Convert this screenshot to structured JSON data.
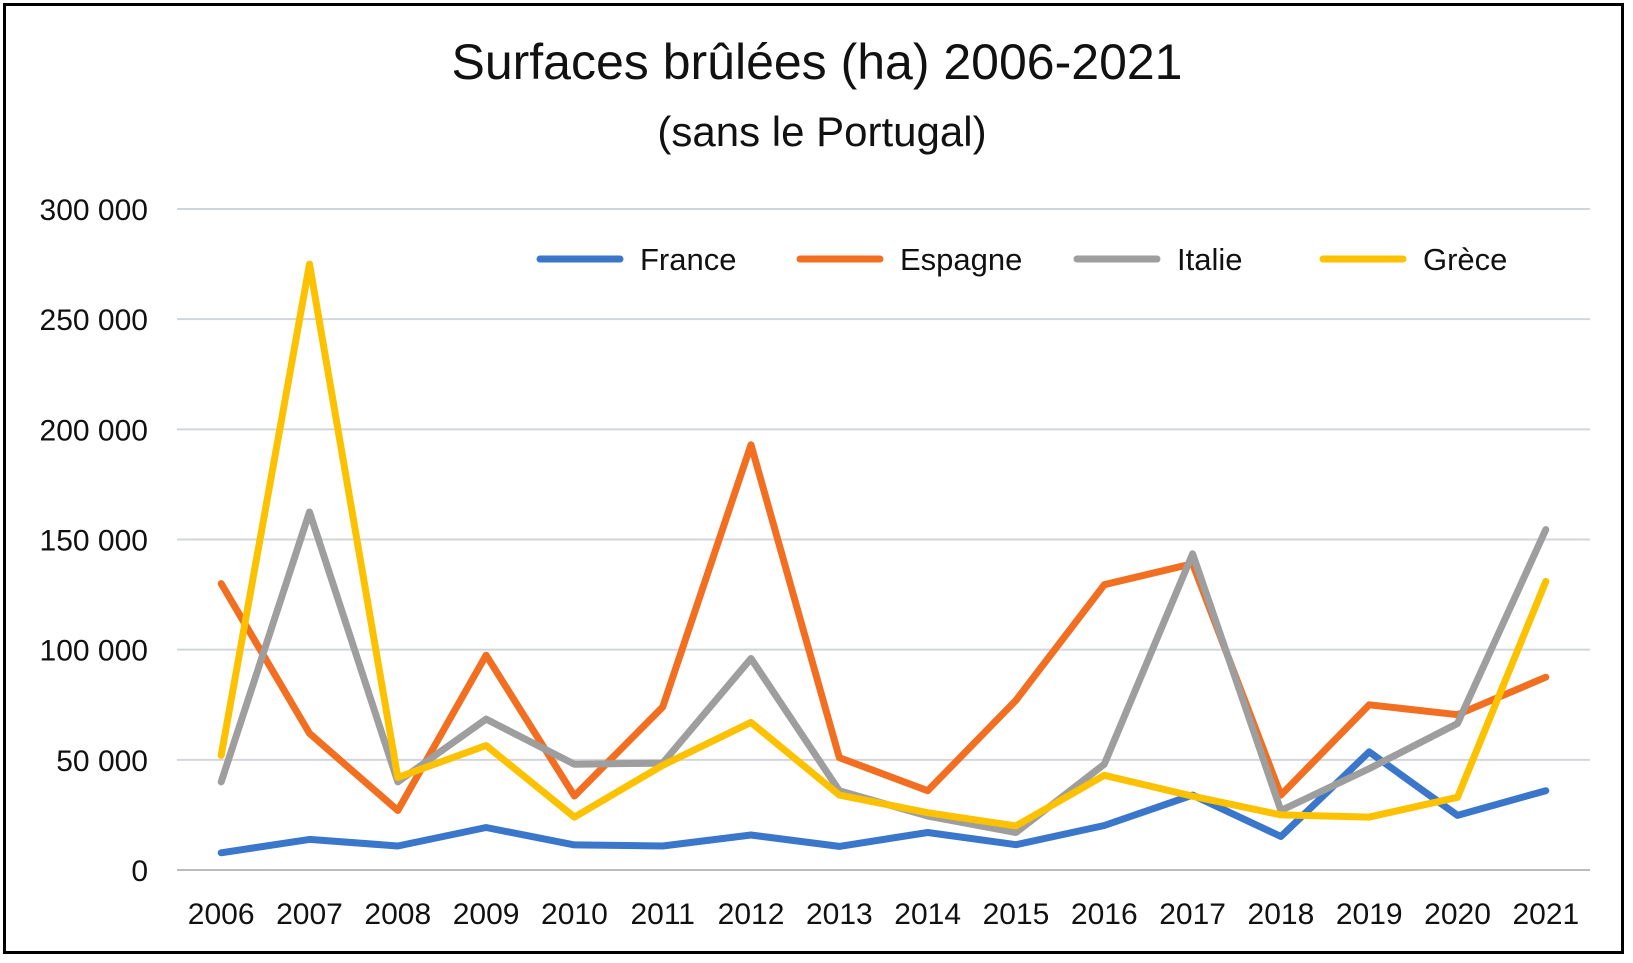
{
  "chart_data": {
    "type": "line",
    "title": "Surfaces brûlées (ha) 2006-2021",
    "subtitle": "(sans le Portugal)",
    "xlabel": "",
    "ylabel": "",
    "categories": [
      "2006",
      "2007",
      "2008",
      "2009",
      "2010",
      "2011",
      "2012",
      "2013",
      "2014",
      "2015",
      "2016",
      "2017",
      "2018",
      "2019",
      "2020",
      "2021"
    ],
    "yticks": [
      0,
      50000,
      100000,
      150000,
      200000,
      250000,
      300000
    ],
    "ytick_labels": [
      "0",
      "50 000",
      "100 000",
      "150 000",
      "200 000",
      "250 000",
      "300 000"
    ],
    "ylim": [
      0,
      300000
    ],
    "grid": true,
    "legend_position": "top-right",
    "series": [
      {
        "name": "France",
        "color": "#3a76c9",
        "values": [
          7800,
          13900,
          10900,
          19300,
          11400,
          10900,
          15900,
          10700,
          17000,
          11500,
          20200,
          34000,
          15200,
          53600,
          24800,
          36000
        ]
      },
      {
        "name": "Espagne",
        "color": "#f26f21",
        "values": [
          130000,
          62000,
          27000,
          97500,
          33600,
          74000,
          193000,
          51000,
          36000,
          77000,
          129500,
          139000,
          34000,
          75000,
          70500,
          87500
        ]
      },
      {
        "name": "Italie",
        "color": "#9e9e9e",
        "values": [
          40000,
          162500,
          40000,
          68500,
          48000,
          48500,
          96000,
          36000,
          24500,
          17000,
          48000,
          143500,
          27000,
          46000,
          66500,
          154500
        ]
      },
      {
        "name": "Grèce",
        "color": "#fcc200",
        "values": [
          52000,
          275000,
          42000,
          56500,
          24000,
          47500,
          67000,
          34000,
          26000,
          20000,
          43000,
          33500,
          25000,
          24000,
          33000,
          131000
        ]
      }
    ]
  }
}
